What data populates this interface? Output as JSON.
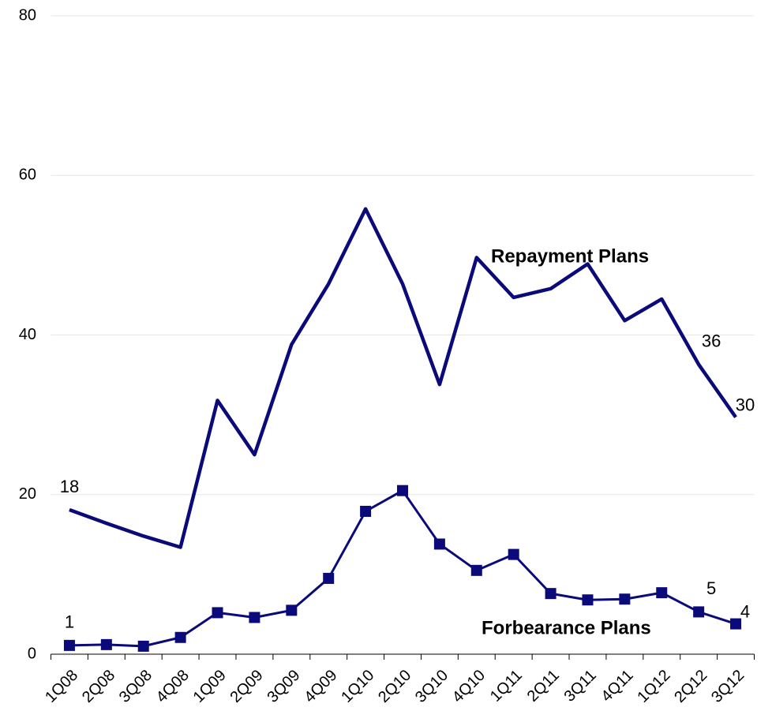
{
  "chart_data": {
    "type": "line",
    "categories": [
      "1Q08",
      "2Q08",
      "3Q08",
      "4Q08",
      "1Q09",
      "2Q09",
      "3Q09",
      "4Q09",
      "1Q10",
      "2Q10",
      "3Q10",
      "4Q10",
      "1Q11",
      "2Q11",
      "3Q11",
      "4Q11",
      "1Q12",
      "2Q12",
      "3Q12"
    ],
    "series": [
      {
        "name": "Repayment Plans",
        "color": "#0a0a7a",
        "marker": "none",
        "values": [
          18.1,
          16.4,
          14.8,
          13.4,
          31.8,
          25.0,
          38.8,
          46.4,
          55.8,
          46.4,
          33.8,
          49.7,
          44.7,
          45.8,
          48.9,
          41.8,
          44.5,
          36.3,
          29.7
        ],
        "value_labels": [
          "18",
          null,
          null,
          null,
          null,
          null,
          null,
          null,
          null,
          null,
          null,
          null,
          null,
          null,
          null,
          null,
          null,
          "36",
          "30"
        ]
      },
      {
        "name": "Forbearance Plans",
        "color": "#0a0a7a",
        "marker": "square",
        "values": [
          1.1,
          1.2,
          1.0,
          2.1,
          5.2,
          4.6,
          5.5,
          9.5,
          17.9,
          20.5,
          13.8,
          10.5,
          12.5,
          7.6,
          6.8,
          6.9,
          7.7,
          5.3,
          3.8
        ],
        "value_labels": [
          "1",
          null,
          null,
          null,
          null,
          null,
          null,
          null,
          null,
          null,
          null,
          null,
          null,
          null,
          null,
          null,
          null,
          "5",
          "4"
        ]
      }
    ],
    "ylim": [
      0,
      80
    ],
    "yticks": [
      0,
      20,
      40,
      60,
      80
    ],
    "grid": true
  }
}
